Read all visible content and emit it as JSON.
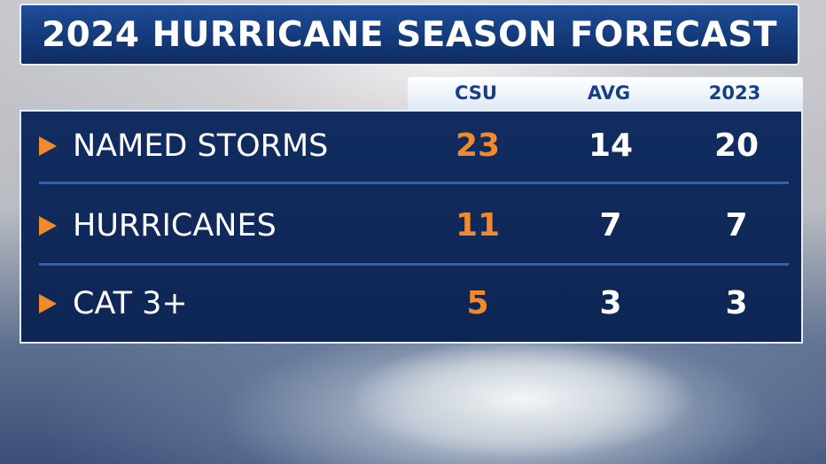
{
  "header": {
    "title": "2024 HURRICANE SEASON FORECAST"
  },
  "table": {
    "columns": [
      "CSU",
      "AVG",
      "2023"
    ],
    "rows": [
      {
        "label": "NAMED STORMS",
        "values": [
          23,
          14,
          20
        ]
      },
      {
        "label": "HURRICANES",
        "values": [
          11,
          7,
          7
        ]
      },
      {
        "label": "CAT 3+",
        "values": [
          5,
          3,
          3
        ]
      }
    ]
  }
}
